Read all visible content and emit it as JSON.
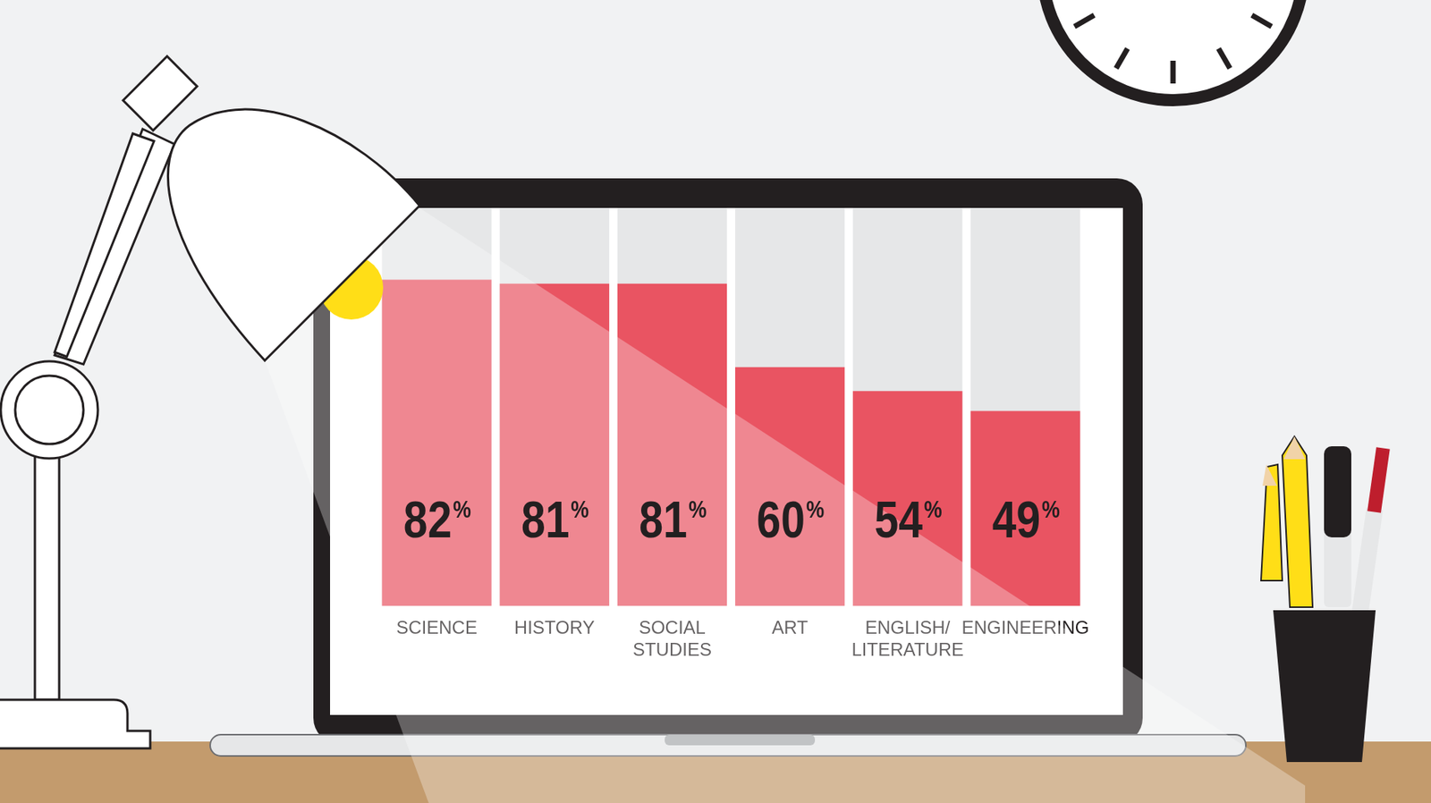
{
  "chart_data": {
    "type": "bar",
    "categories": [
      "SCIENCE",
      "HISTORY",
      "SOCIAL STUDIES",
      "ART",
      "ENGLISH/LITERATURE",
      "ENGINEERING"
    ],
    "values": [
      82,
      81,
      81,
      60,
      54,
      49
    ],
    "value_labels": [
      "82%",
      "81%",
      "81%",
      "60%",
      "54%",
      "49%"
    ],
    "color": "#e95462",
    "ylim": [
      0,
      100
    ],
    "grid": false,
    "data_labels": true,
    "tick_labels": "x"
  }
}
